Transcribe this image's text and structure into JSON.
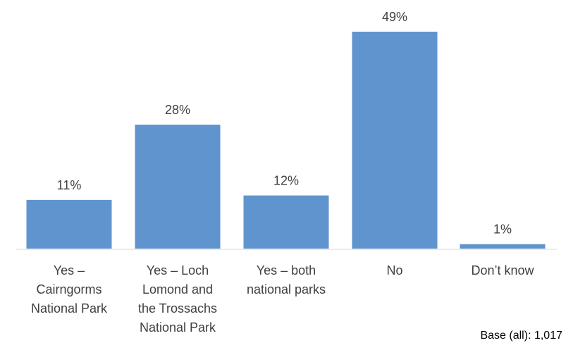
{
  "chart_data": {
    "type": "bar",
    "categories": [
      [
        "Yes –",
        "Cairngorms",
        "National Park"
      ],
      [
        "Yes – Loch",
        "Lomond and",
        "the Trossachs",
        "National Park"
      ],
      [
        "Yes – both",
        "national parks"
      ],
      [
        "No"
      ],
      [
        "Don’t know"
      ]
    ],
    "values": [
      11,
      28,
      12,
      49,
      1
    ],
    "data_labels": [
      "11%",
      "28%",
      "12%",
      "49%",
      "1%"
    ],
    "ylim": [
      0,
      49
    ],
    "grid": false,
    "legend": "none",
    "bar_color": "#6094CE"
  },
  "note": "Base (all): 1,017"
}
